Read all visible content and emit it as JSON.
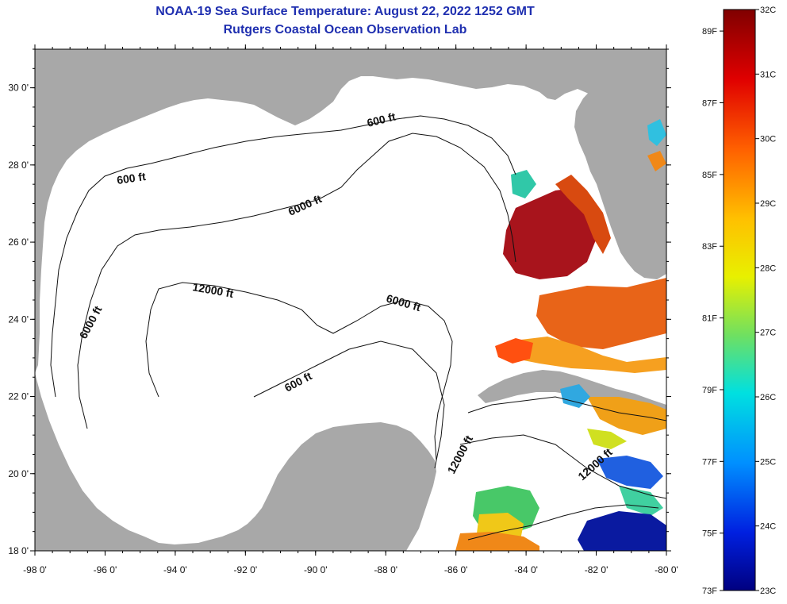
{
  "header": {
    "title": "NOAA-19 Sea Surface Temperature:  August 22, 2022 1252 GMT",
    "subtitle": "Rutgers Coastal Ocean Observation Lab"
  },
  "map": {
    "lon_range": [
      -98,
      -80
    ],
    "lat_range": [
      18,
      31
    ],
    "lon_ticks": [
      "-98 0'",
      "-96 0'",
      "-94 0'",
      "-92 0'",
      "-90 0'",
      "-88 0'",
      "-86 0'",
      "-84 0'",
      "-82 0'",
      "-80 0'"
    ],
    "lat_ticks": [
      "18 0'",
      "20 0'",
      "22 0'",
      "24 0'",
      "26 0'",
      "28 0'",
      "30 0'"
    ],
    "contour_labels": [
      "600 ft",
      "600 ft",
      "6000 ft",
      "12000 ft",
      "6000 ft",
      "6000 ft",
      "600 ft",
      "12000 ft",
      "12000 ft"
    ]
  },
  "colorbar": {
    "celsius_labels": [
      "32C",
      "31C",
      "30C",
      "29C",
      "28C",
      "27C",
      "26C",
      "25C",
      "24C",
      "23C"
    ],
    "fahrenheit_labels": [
      "89F",
      "87F",
      "85F",
      "83F",
      "81F",
      "79F",
      "77F",
      "75F",
      "73F"
    ],
    "range_c": [
      23,
      32
    ]
  },
  "colors": {
    "title": "#1f2fb0",
    "land": "#a8a8a8",
    "ocean": "#ffffff"
  }
}
